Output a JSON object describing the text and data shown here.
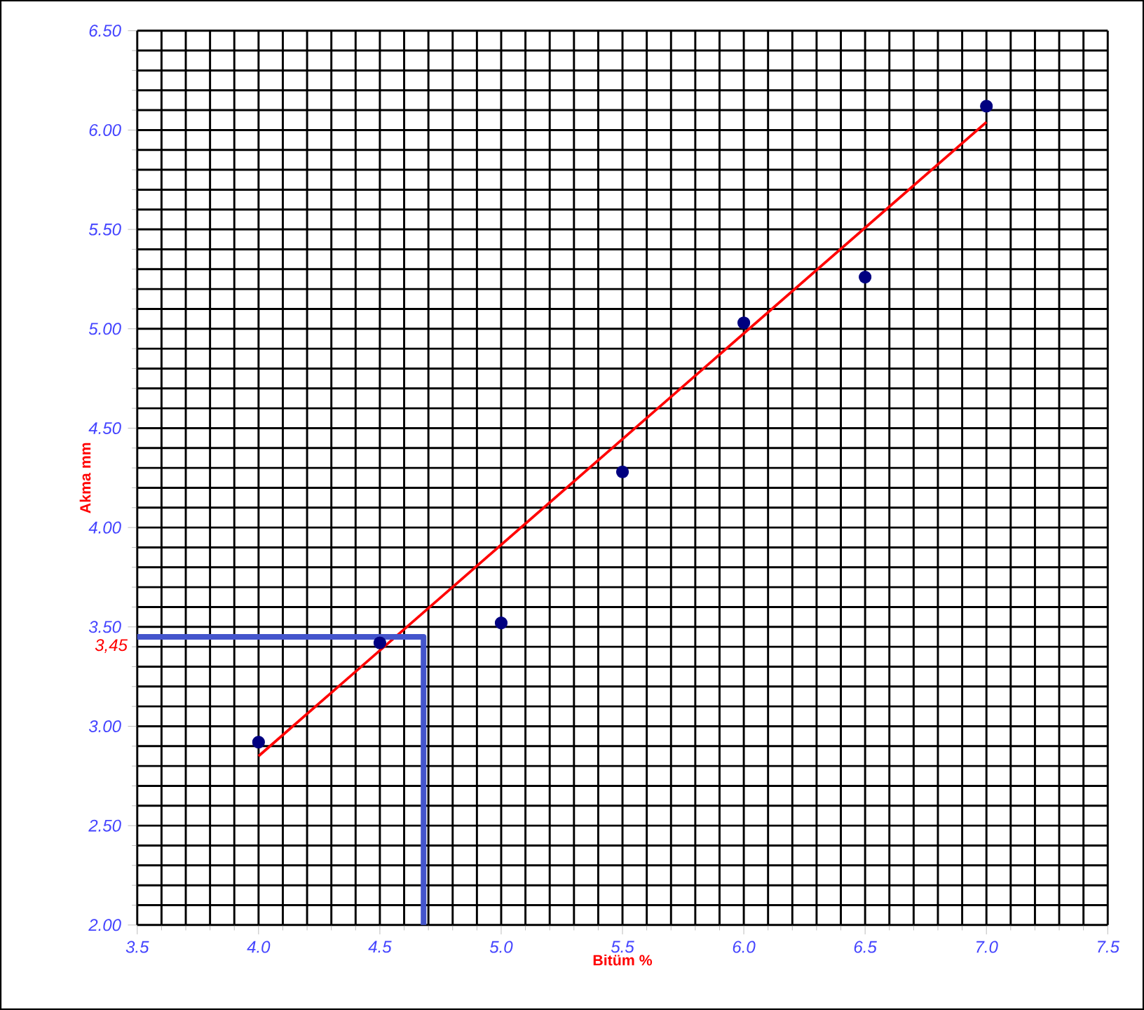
{
  "chart_data": {
    "type": "scatter",
    "xlabel": "Bitüm %",
    "ylabel": "Akma mm",
    "x": [
      4.0,
      4.5,
      5.0,
      5.5,
      6.0,
      6.5,
      7.0
    ],
    "series": [
      {
        "color": "#000080",
        "values": [
          2.92,
          3.42,
          3.52,
          4.28,
          5.03,
          5.26,
          6.12
        ]
      },
      {
        "type": "line",
        "x": [
          4.0,
          7.0
        ],
        "values": [
          2.85,
          6.04
        ],
        "color": "#ff0000",
        "marker": "none"
      },
      {
        "type": "line",
        "x": [
          3.5,
          4.68,
          4.68
        ],
        "values": [
          3.45,
          3.45,
          2.0
        ],
        "color": "#4455cc",
        "marker": "none"
      }
    ],
    "xlim": [
      3.5,
      7.5
    ],
    "ylim": [
      2.0,
      6.5
    ],
    "xticks": [
      {
        "value": 3.5,
        "label": "3.5"
      },
      {
        "value": 4.0,
        "label": "4.0"
      },
      {
        "value": 4.5,
        "label": "4.5"
      },
      {
        "value": 5.0,
        "label": "5.0"
      },
      {
        "value": 5.5,
        "label": "5.5"
      },
      {
        "value": 6.0,
        "label": "6.0"
      },
      {
        "value": 6.5,
        "label": "6.5"
      },
      {
        "value": 7.0,
        "label": "7.0"
      },
      {
        "value": 7.5,
        "label": "7.5"
      }
    ],
    "yticks": [
      {
        "value": 2.0,
        "label": "2.00"
      },
      {
        "value": 2.5,
        "label": "2.50"
      },
      {
        "value": 3.0,
        "label": "3.00"
      },
      {
        "value": 3.5,
        "label": "3.50"
      },
      {
        "value": 4.0,
        "label": "4.00"
      },
      {
        "value": 4.5,
        "label": "4.50"
      },
      {
        "value": 5.0,
        "label": "5.00"
      },
      {
        "value": 5.5,
        "label": "5.50"
      },
      {
        "value": 6.0,
        "label": "6.00"
      },
      {
        "value": 6.5,
        "label": "6.50"
      }
    ],
    "annotations": [
      {
        "text": "3,45",
        "x": 3.5,
        "y": 3.45
      }
    ],
    "grid": true,
    "marker": "circle"
  }
}
